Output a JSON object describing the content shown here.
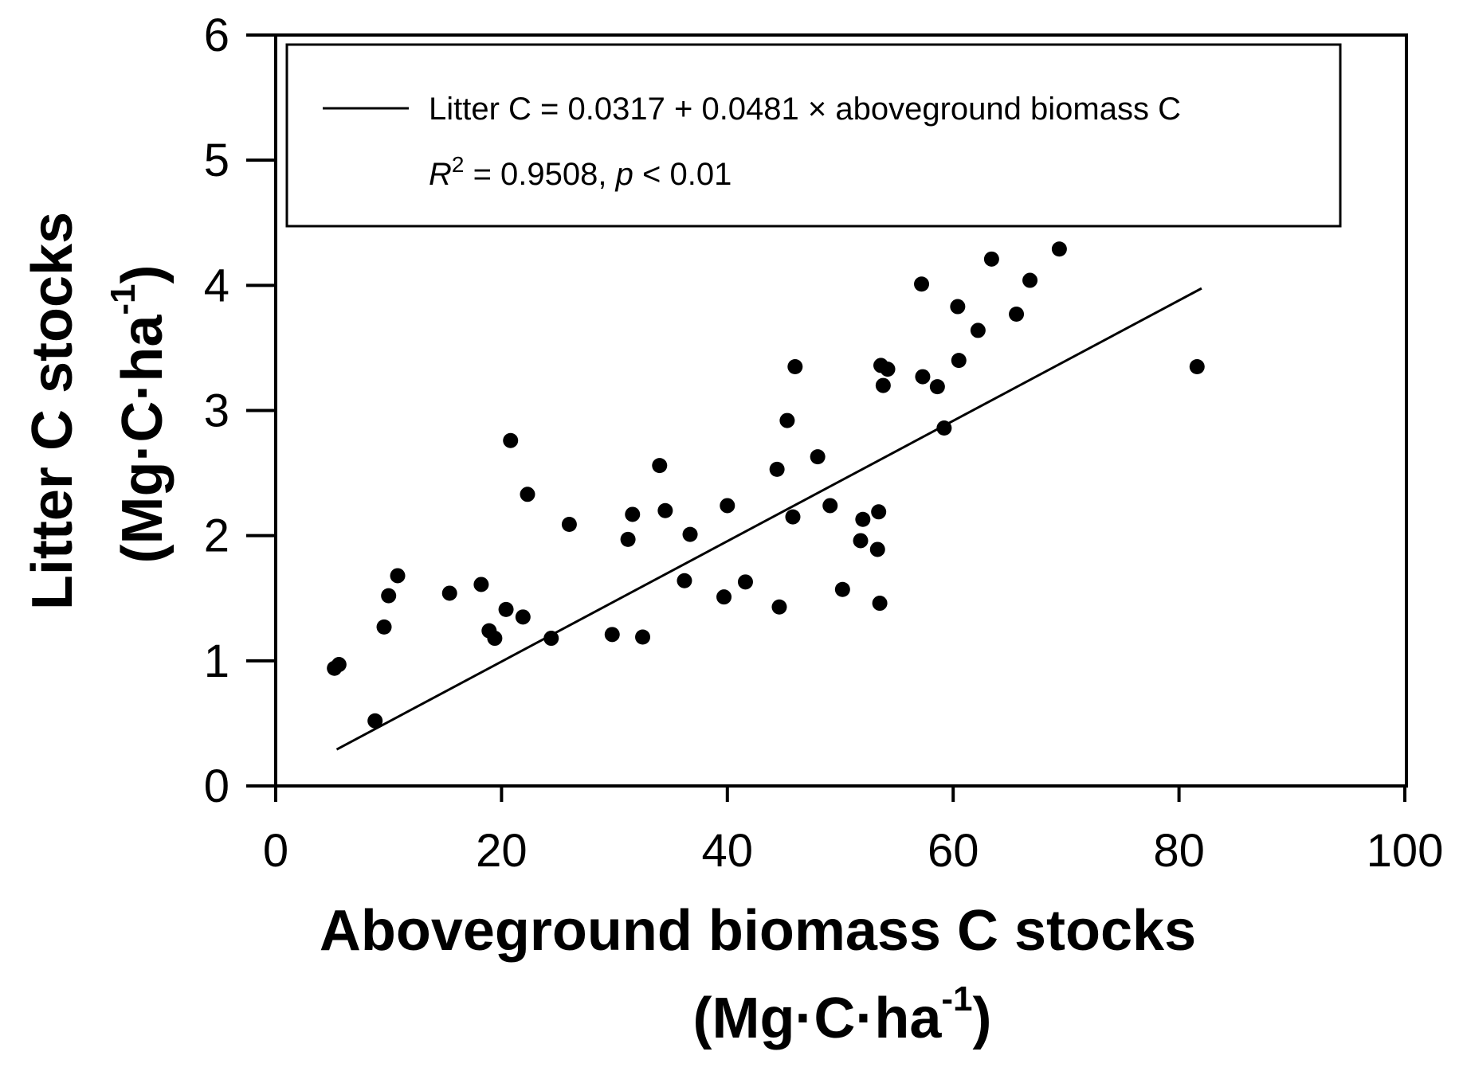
{
  "chart_data": {
    "type": "scatter",
    "xlabel": "Aboveground biomass C stocks",
    "xlabel_unit_prefix": "(Mg·C·ha",
    "xlabel_unit_sup": "-1",
    "xlabel_unit_suffix": ")",
    "ylabel": "Litter C stocks",
    "ylabel_unit_prefix": "(Mg·C·ha",
    "ylabel_unit_sup": "-1",
    "ylabel_unit_suffix": ")",
    "xlim": [
      0,
      100
    ],
    "ylim": [
      0,
      6
    ],
    "xticks": [
      0,
      20,
      40,
      60,
      80,
      100
    ],
    "yticks": [
      0,
      1,
      2,
      3,
      4,
      5,
      6
    ],
    "grid": false,
    "legend_position": "top",
    "legend": {
      "line_label": "Litter C = 0.0317 + 0.0481 × aboveground biomass C",
      "r2_symbol": "R",
      "r2_sup": "2",
      "r2_text": " = 0.9508, ",
      "p_symbol": "p",
      "p_text": " < 0.01"
    },
    "regression": {
      "intercept": 0.0317,
      "slope": 0.0481,
      "x_range": [
        5.4,
        82
      ]
    },
    "points": [
      {
        "x": 5.2,
        "y": 0.94
      },
      {
        "x": 5.6,
        "y": 0.97
      },
      {
        "x": 8.8,
        "y": 0.52
      },
      {
        "x": 9.6,
        "y": 1.27
      },
      {
        "x": 10.0,
        "y": 1.52
      },
      {
        "x": 10.8,
        "y": 1.68
      },
      {
        "x": 15.4,
        "y": 1.54
      },
      {
        "x": 18.2,
        "y": 1.61
      },
      {
        "x": 18.9,
        "y": 1.24
      },
      {
        "x": 19.4,
        "y": 1.18
      },
      {
        "x": 20.4,
        "y": 1.41
      },
      {
        "x": 20.8,
        "y": 2.76
      },
      {
        "x": 21.9,
        "y": 1.35
      },
      {
        "x": 22.3,
        "y": 2.33
      },
      {
        "x": 24.4,
        "y": 1.18
      },
      {
        "x": 26.0,
        "y": 2.09
      },
      {
        "x": 29.8,
        "y": 1.21
      },
      {
        "x": 31.2,
        "y": 1.97
      },
      {
        "x": 31.6,
        "y": 2.17
      },
      {
        "x": 32.5,
        "y": 1.19
      },
      {
        "x": 34.0,
        "y": 2.56
      },
      {
        "x": 34.5,
        "y": 2.2
      },
      {
        "x": 36.2,
        "y": 1.64
      },
      {
        "x": 36.7,
        "y": 2.01
      },
      {
        "x": 39.7,
        "y": 1.51
      },
      {
        "x": 40.0,
        "y": 2.24
      },
      {
        "x": 41.6,
        "y": 1.63
      },
      {
        "x": 44.4,
        "y": 2.53
      },
      {
        "x": 44.6,
        "y": 1.43
      },
      {
        "x": 45.3,
        "y": 2.92
      },
      {
        "x": 45.8,
        "y": 2.15
      },
      {
        "x": 46.0,
        "y": 3.35
      },
      {
        "x": 48.0,
        "y": 2.63
      },
      {
        "x": 49.1,
        "y": 2.24
      },
      {
        "x": 50.2,
        "y": 1.57
      },
      {
        "x": 51.8,
        "y": 1.96
      },
      {
        "x": 52.0,
        "y": 2.13
      },
      {
        "x": 53.3,
        "y": 1.89
      },
      {
        "x": 53.4,
        "y": 2.19
      },
      {
        "x": 53.5,
        "y": 1.46
      },
      {
        "x": 53.6,
        "y": 3.36
      },
      {
        "x": 53.8,
        "y": 3.2
      },
      {
        "x": 54.2,
        "y": 3.33
      },
      {
        "x": 57.2,
        "y": 4.01
      },
      {
        "x": 57.3,
        "y": 3.27
      },
      {
        "x": 58.6,
        "y": 3.19
      },
      {
        "x": 59.2,
        "y": 2.86
      },
      {
        "x": 60.4,
        "y": 3.83
      },
      {
        "x": 60.5,
        "y": 3.4
      },
      {
        "x": 62.2,
        "y": 3.64
      },
      {
        "x": 63.4,
        "y": 4.21
      },
      {
        "x": 65.6,
        "y": 3.77
      },
      {
        "x": 66.8,
        "y": 4.04
      },
      {
        "x": 69.4,
        "y": 4.29
      },
      {
        "x": 81.6,
        "y": 3.35
      }
    ]
  }
}
